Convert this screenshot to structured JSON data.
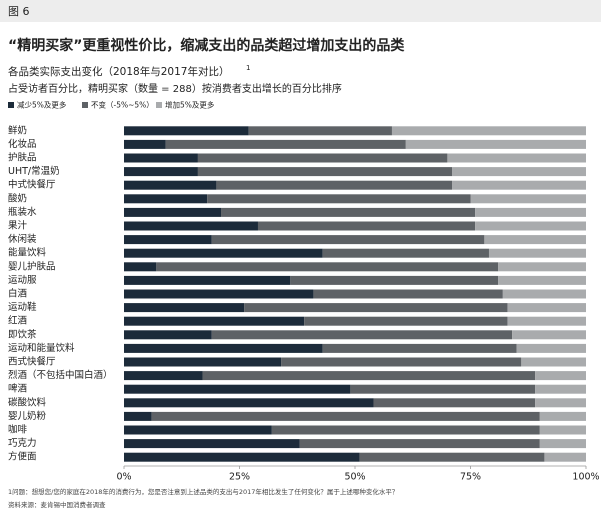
{
  "chart_data": {
    "type": "stacked-barh",
    "figure_label": "图 6",
    "title": "“精明买家”更重视性价比，缩减支出的品类超过增加支出的品类",
    "subtitle": "各品类实际支出变化（2018年与2017年对比）",
    "subtitle_note": "1",
    "description": "占受访者百分比，精明买家（数量 = 288）按消费者支出增长的百分比排序",
    "categories": [
      "鲜奶",
      "化妆品",
      "护肤品",
      "UHT/常温奶",
      "中式快餐厅",
      "酸奶",
      "瓶装水",
      "果汁",
      "休闲装",
      "能量饮料",
      "婴儿护肤品",
      "运动服",
      "白酒",
      "运动鞋",
      "红酒",
      "即饮茶",
      "运动和能量饮料",
      "西式快餐厅",
      "烈酒（不包括中国白酒）",
      "啤酒",
      "碳酸饮料",
      "婴儿奶粉",
      "咖啡",
      "巧克力",
      "方便面"
    ],
    "series": [
      {
        "name": "减少5%及更多",
        "color": "#1c2b3a",
        "values": [
          27,
          9,
          16,
          16,
          20,
          18,
          21,
          29,
          19,
          43,
          7,
          36,
          41,
          26,
          39,
          19,
          43,
          34,
          17,
          49,
          54,
          6,
          32,
          38,
          51
        ]
      },
      {
        "name": "不变（-5%~5%）",
        "color": "#5e6266",
        "values": [
          31,
          52,
          54,
          55,
          51,
          57,
          55,
          47,
          59,
          36,
          74,
          45,
          41,
          57,
          44,
          65,
          42,
          52,
          72,
          40,
          35,
          84,
          58,
          52,
          40
        ]
      },
      {
        "name": "增加5%及更多",
        "color": "#a9abad",
        "values": [
          42,
          39,
          30,
          29,
          29,
          25,
          24,
          24,
          22,
          21,
          19,
          19,
          18,
          17,
          17,
          16,
          15,
          14,
          11,
          11,
          11,
          10,
          10,
          10,
          9
        ]
      }
    ],
    "xlim": [
      0,
      100
    ],
    "xticks": [
      {
        "value": 0,
        "label": "0%"
      },
      {
        "value": 25,
        "label": "25%"
      },
      {
        "value": 50,
        "label": "50%"
      },
      {
        "value": 75,
        "label": "75%"
      },
      {
        "value": 100,
        "label": "100%"
      }
    ],
    "footnote": "1问题：想想您/您的家庭在2018年的消费行为，您是否注意到上述品类的支出与2017年相比发生了任何变化？属于上述哪种变化水平？",
    "source": "资料来源：麦肯锡中国消费者调查"
  }
}
